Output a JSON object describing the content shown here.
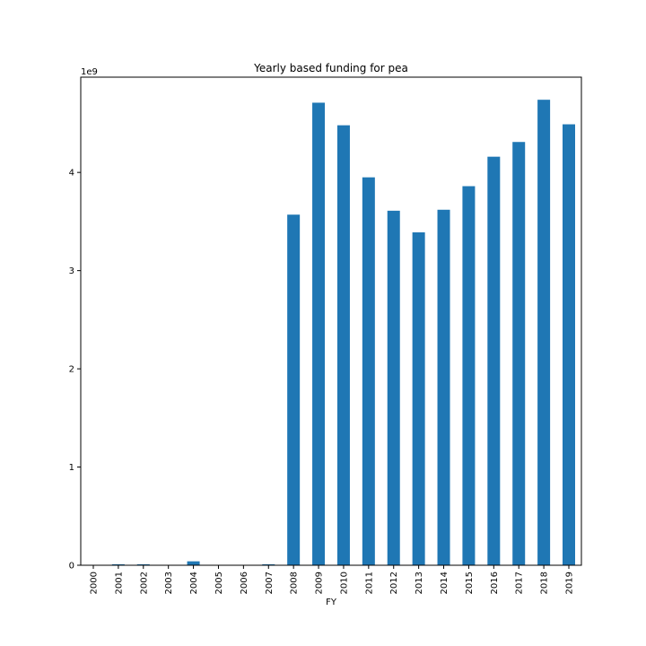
{
  "chart_data": {
    "type": "bar",
    "title": "Yearly based funding for pea",
    "xlabel": "FY",
    "ylabel": "",
    "offset_label": "1e9",
    "categories": [
      "2000",
      "2001",
      "2002",
      "2003",
      "2004",
      "2005",
      "2006",
      "2007",
      "2008",
      "2009",
      "2010",
      "2011",
      "2012",
      "2013",
      "2014",
      "2015",
      "2016",
      "2017",
      "2018",
      "2019"
    ],
    "values": [
      0,
      0.01,
      0.01,
      0,
      0.04,
      0,
      0,
      0.01,
      3.57,
      4.71,
      4.48,
      3.95,
      3.61,
      3.39,
      3.62,
      3.86,
      4.16,
      4.31,
      4.74,
      4.49
    ],
    "value_multiplier": 1000000000,
    "ylim": [
      0,
      4.97
    ],
    "yticks": [
      0,
      1,
      2,
      3,
      4
    ],
    "bar_color": "#1f77b4",
    "grid": false,
    "legend": "none"
  }
}
